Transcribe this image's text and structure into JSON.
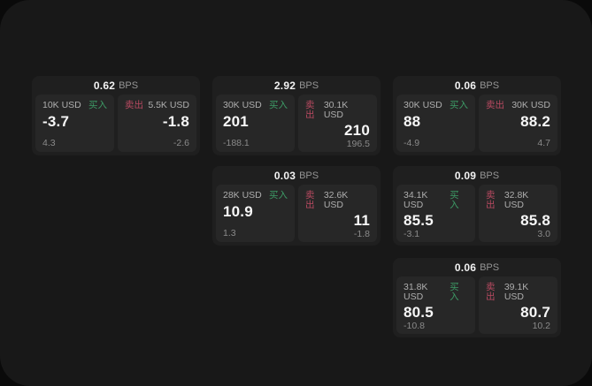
{
  "labels": {
    "bps": "BPS",
    "buy": "买入",
    "sell": "卖出"
  },
  "colors": {
    "background": "#0a0a0a",
    "surface": "#181818",
    "card": "#1f1f1f",
    "panel": "#272727",
    "buy_green": "#3d9b66",
    "sell_red": "#b84a61",
    "text_primary": "#f2f2f2",
    "text_secondary": "#8a8a8a"
  },
  "cards": [
    {
      "grid": {
        "col": 0,
        "row": 0
      },
      "bps": "0.62",
      "buy": {
        "notional": "10K USD",
        "price": "-3.7",
        "delta": "4.3"
      },
      "sell": {
        "notional": "5.5K USD",
        "price": "-1.8",
        "delta": "-2.6"
      }
    },
    {
      "grid": {
        "col": 1,
        "row": 0
      },
      "bps": "2.92",
      "buy": {
        "notional": "30K USD",
        "price": "201",
        "delta": "-188.1"
      },
      "sell": {
        "notional": "30.1K USD",
        "price": "210",
        "delta": "196.5"
      }
    },
    {
      "grid": {
        "col": 2,
        "row": 0
      },
      "bps": "0.06",
      "buy": {
        "notional": "30K USD",
        "price": "88",
        "delta": "-4.9"
      },
      "sell": {
        "notional": "30K USD",
        "price": "88.2",
        "delta": "4.7"
      }
    },
    {
      "grid": {
        "col": 1,
        "row": 1
      },
      "bps": "0.03",
      "buy": {
        "notional": "28K USD",
        "price": "10.9",
        "delta": "1.3"
      },
      "sell": {
        "notional": "32.6K USD",
        "price": "11",
        "delta": "-1.8"
      }
    },
    {
      "grid": {
        "col": 2,
        "row": 1
      },
      "bps": "0.09",
      "buy": {
        "notional": "34.1K USD",
        "price": "85.5",
        "delta": "-3.1"
      },
      "sell": {
        "notional": "32.8K USD",
        "price": "85.8",
        "delta": "3.0"
      }
    },
    {
      "grid": {
        "col": 2,
        "row": 2
      },
      "bps": "0.06",
      "buy": {
        "notional": "31.8K USD",
        "price": "80.5",
        "delta": "-10.8"
      },
      "sell": {
        "notional": "39.1K USD",
        "price": "80.7",
        "delta": "10.2"
      }
    }
  ]
}
